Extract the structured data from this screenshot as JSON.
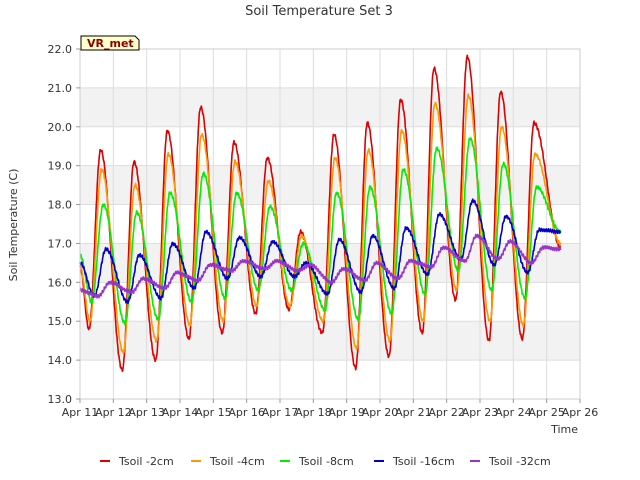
{
  "chart_data": {
    "type": "line",
    "title": "Soil Temperature Set 3",
    "xlabel": "Time",
    "ylabel": "Soil Temperature (C)",
    "ylim": [
      13.0,
      22.0
    ],
    "xlim": [
      "Apr 11",
      "Apr 26"
    ],
    "y_ticks": [
      "13.0",
      "14.0",
      "15.0",
      "16.0",
      "17.0",
      "18.0",
      "19.0",
      "20.0",
      "21.0",
      "22.0"
    ],
    "x_ticks": [
      "Apr 11",
      "Apr 12",
      "Apr 13",
      "Apr 14",
      "Apr 15",
      "Apr 16",
      "Apr 17",
      "Apr 18",
      "Apr 19",
      "Apr 20",
      "Apr 21",
      "Apr 22",
      "Apr 23",
      "Apr 24",
      "Apr 25",
      "Apr 26"
    ],
    "grid": true,
    "alternating_bands": true,
    "legend_position": "bottom",
    "site_badge": "VR_met",
    "series": [
      {
        "name": "Tsoil -2cm",
        "color": "#dd0000",
        "mins": [
          14.8,
          13.75,
          14.0,
          14.55,
          14.7,
          15.2,
          15.3,
          14.7,
          13.8,
          14.1,
          14.7,
          15.55,
          14.5,
          14.55
        ],
        "maxs": [
          19.4,
          19.1,
          19.9,
          20.5,
          19.6,
          19.2,
          17.3,
          19.8,
          20.1,
          20.7,
          21.5,
          21.8,
          20.9,
          20.1
        ],
        "start": 16.4,
        "end": 16.9
      },
      {
        "name": "Tsoil -4cm",
        "color": "#ff9900",
        "mins": [
          15.0,
          14.2,
          14.5,
          14.9,
          15.0,
          15.4,
          15.4,
          15.0,
          14.3,
          14.5,
          15.0,
          15.8,
          15.0,
          14.9
        ],
        "maxs": [
          18.9,
          18.5,
          19.3,
          19.8,
          19.1,
          18.6,
          17.2,
          19.2,
          19.4,
          19.9,
          20.6,
          20.8,
          20.0,
          19.3
        ],
        "start": 16.4,
        "end": 17.0
      },
      {
        "name": "Tsoil -8cm",
        "color": "#00ee00",
        "mins": [
          15.5,
          14.95,
          15.05,
          15.5,
          15.6,
          15.8,
          15.8,
          15.3,
          15.05,
          15.2,
          15.7,
          16.3,
          15.8,
          15.6
        ],
        "maxs": [
          18.0,
          17.8,
          18.3,
          18.8,
          18.3,
          17.95,
          17.0,
          18.3,
          18.45,
          18.9,
          19.45,
          19.7,
          19.05,
          18.45
        ],
        "start": 16.7,
        "end": 17.3
      },
      {
        "name": "Tsoil -16cm",
        "color": "#0000cc",
        "mins": [
          15.65,
          15.5,
          15.6,
          15.85,
          16.1,
          16.15,
          16.15,
          15.7,
          15.75,
          15.85,
          16.2,
          16.6,
          16.45,
          16.25
        ],
        "maxs": [
          16.85,
          16.7,
          17.0,
          17.3,
          17.15,
          17.05,
          16.5,
          17.1,
          17.2,
          17.4,
          17.75,
          18.1,
          17.7,
          17.35
        ],
        "start": 16.5,
        "end": 17.3
      },
      {
        "name": "Tsoil -32cm",
        "color": "#9933cc",
        "mins": [
          15.65,
          15.75,
          15.85,
          16.05,
          16.3,
          16.35,
          16.3,
          16.0,
          16.05,
          16.1,
          16.4,
          16.55,
          16.6,
          16.5
        ],
        "maxs": [
          16.0,
          16.1,
          16.25,
          16.45,
          16.55,
          16.55,
          16.45,
          16.35,
          16.5,
          16.55,
          16.9,
          17.2,
          17.05,
          16.9
        ],
        "start": 15.8,
        "end": 16.85
      }
    ]
  }
}
